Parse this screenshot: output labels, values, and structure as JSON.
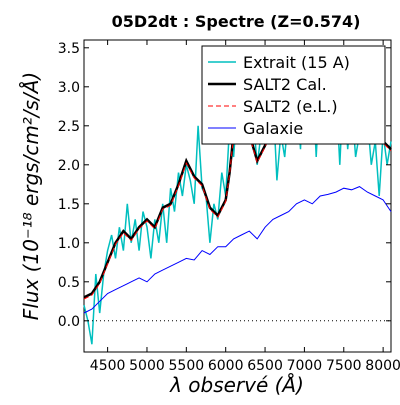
{
  "chart_data": {
    "type": "line",
    "title": "05D2dt : Spectre (Z=0.574)",
    "xlabel": "λ observé (Å)",
    "ylabel": "Flux (10⁻¹⁸ ergs/cm²/s/Å)",
    "xlim": [
      4200,
      8100
    ],
    "ylim": [
      -0.4,
      3.6
    ],
    "xticks": [
      4500,
      5000,
      5500,
      6000,
      6500,
      7000,
      7500,
      8000
    ],
    "yticks": [
      0.0,
      0.5,
      1.0,
      1.5,
      2.0,
      2.5,
      3.0,
      3.5
    ],
    "xtick_labels": [
      "4500",
      "5000",
      "5500",
      "6000",
      "6500",
      "7000",
      "7500",
      "8000"
    ],
    "ytick_labels": [
      "0.0",
      "0.5",
      "1.0",
      "1.5",
      "2.0",
      "2.5",
      "3.0",
      "3.5"
    ],
    "zero_line": 0.0,
    "legend_position": "top-right",
    "series": [
      {
        "name": "Extrait (15 A)",
        "color": "#00bfbf",
        "width": 1.5,
        "x": [
          4200,
          4250,
          4300,
          4350,
          4400,
          4450,
          4500,
          4550,
          4600,
          4650,
          4700,
          4750,
          4800,
          4850,
          4900,
          4950,
          5000,
          5050,
          5100,
          5150,
          5200,
          5250,
          5300,
          5350,
          5400,
          5450,
          5500,
          5550,
          5600,
          5650,
          5700,
          5750,
          5800,
          5850,
          5900,
          5950,
          6000,
          6050,
          6100,
          6150,
          6200,
          6250,
          6300,
          6350,
          6400,
          6450,
          6500,
          6550,
          6600,
          6650,
          6700,
          6750,
          6800,
          6850,
          6900,
          6950,
          7000,
          7050,
          7100,
          7150,
          7200,
          7250,
          7300,
          7350,
          7400,
          7450,
          7500,
          7550,
          7600,
          7650,
          7700,
          7750,
          7800,
          7850,
          7900,
          7950,
          8000,
          8050,
          8100
        ],
        "y": [
          0.2,
          0.0,
          -0.3,
          0.6,
          0.1,
          0.6,
          0.9,
          1.1,
          0.8,
          1.2,
          0.9,
          1.5,
          1.0,
          1.3,
          0.9,
          1.4,
          1.2,
          0.8,
          1.3,
          1.0,
          1.5,
          1.0,
          1.7,
          1.4,
          1.9,
          1.6,
          2.0,
          1.8,
          1.5,
          2.5,
          1.7,
          1.6,
          1.0,
          1.5,
          1.3,
          1.9,
          1.6,
          2.5,
          2.1,
          2.8,
          2.5,
          3.2,
          2.3,
          2.6,
          2.0,
          2.4,
          2.7,
          2.5,
          2.9,
          1.8,
          2.4,
          2.1,
          2.7,
          2.5,
          3.0,
          2.2,
          3.5,
          2.4,
          3.2,
          2.1,
          3.1,
          2.6,
          3.3,
          2.4,
          3.0,
          2.0,
          3.1,
          2.2,
          2.8,
          2.1,
          2.4,
          2.9,
          2.6,
          2.0,
          2.3,
          1.6,
          2.4,
          2.0,
          2.3
        ]
      },
      {
        "name": "SALT2 Cal.",
        "color": "#000000",
        "width": 2.5,
        "x": [
          4200,
          4300,
          4400,
          4500,
          4600,
          4700,
          4800,
          4900,
          5000,
          5100,
          5200,
          5300,
          5400,
          5500,
          5600,
          5700,
          5800,
          5900,
          6000,
          6050,
          6100,
          6150,
          6200,
          6300,
          6400,
          6500,
          6600,
          6700,
          6800,
          6900,
          7000,
          7100,
          7200,
          7300,
          7400,
          7500,
          7600,
          7700,
          7800,
          7900,
          8000,
          8100
        ],
        "y": [
          0.3,
          0.35,
          0.5,
          0.75,
          1.0,
          1.15,
          1.05,
          1.2,
          1.3,
          1.2,
          1.45,
          1.5,
          1.75,
          2.05,
          1.85,
          1.75,
          1.45,
          1.35,
          1.55,
          1.9,
          2.4,
          2.45,
          2.3,
          2.4,
          2.05,
          2.25,
          2.5,
          2.45,
          2.3,
          2.5,
          2.75,
          2.6,
          2.8,
          2.7,
          2.6,
          2.5,
          2.65,
          2.45,
          2.35,
          2.4,
          2.3,
          2.2
        ]
      },
      {
        "name": "SALT2 (e.L.)",
        "color": "#ff0000",
        "width": 1.0,
        "dashed": true,
        "x": [
          4200,
          4300,
          4400,
          4500,
          4600,
          4700,
          4800,
          4900,
          5000,
          5100,
          5200,
          5300,
          5400,
          5500,
          5600,
          5700,
          5800,
          5900,
          6000,
          6050,
          6100,
          6150,
          6200,
          6300,
          6400,
          6500,
          6600,
          6700,
          6800,
          6900,
          7000,
          7100,
          7200,
          7300,
          7400,
          7500,
          7600,
          7700,
          7800,
          7900,
          8000,
          8100
        ],
        "y": [
          0.28,
          0.33,
          0.48,
          0.73,
          0.98,
          1.13,
          1.03,
          1.18,
          1.28,
          1.18,
          1.43,
          1.48,
          1.73,
          2.02,
          1.83,
          1.73,
          1.43,
          1.33,
          1.53,
          1.88,
          2.37,
          2.42,
          2.28,
          2.38,
          2.03,
          2.23,
          2.48,
          2.43,
          2.28,
          2.48,
          2.72,
          2.58,
          2.78,
          2.68,
          2.58,
          2.48,
          2.62,
          2.43,
          2.33,
          2.38,
          2.28,
          2.18
        ]
      },
      {
        "name": "Galaxie",
        "color": "#0000ff",
        "width": 1.0,
        "x": [
          4200,
          4300,
          4400,
          4500,
          4600,
          4700,
          4800,
          4900,
          5000,
          5100,
          5200,
          5300,
          5400,
          5500,
          5600,
          5700,
          5800,
          5900,
          6000,
          6100,
          6200,
          6300,
          6400,
          6500,
          6600,
          6700,
          6800,
          6900,
          7000,
          7100,
          7200,
          7300,
          7400,
          7500,
          7600,
          7700,
          7800,
          7900,
          8000,
          8100
        ],
        "y": [
          0.1,
          0.15,
          0.25,
          0.35,
          0.4,
          0.45,
          0.5,
          0.55,
          0.5,
          0.6,
          0.65,
          0.7,
          0.75,
          0.8,
          0.78,
          0.9,
          0.85,
          0.95,
          0.95,
          1.05,
          1.1,
          1.15,
          1.05,
          1.2,
          1.3,
          1.35,
          1.4,
          1.5,
          1.55,
          1.5,
          1.6,
          1.62,
          1.65,
          1.7,
          1.68,
          1.72,
          1.65,
          1.6,
          1.55,
          1.4
        ]
      }
    ]
  }
}
